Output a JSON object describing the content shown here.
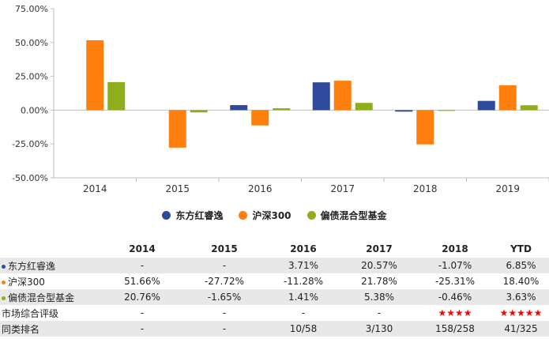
{
  "colors": {
    "series1": "#2f4a9a",
    "series2": "#ff7f0e",
    "series3": "#8fae1b",
    "rating": "#ff0000",
    "grid": "#d9d9d9",
    "row_shade": "#e8e8e8"
  },
  "chart_data": {
    "type": "bar",
    "categories": [
      "2014",
      "2015",
      "2016",
      "2017",
      "2018",
      "2019"
    ],
    "series": [
      {
        "name": "东方红睿逸",
        "values": [
          null,
          null,
          3.71,
          20.57,
          -1.07,
          6.85
        ]
      },
      {
        "name": "沪深300",
        "values": [
          51.66,
          -27.72,
          -11.28,
          21.78,
          -25.31,
          18.4
        ]
      },
      {
        "name": "偏债混合型基金",
        "values": [
          20.76,
          -1.65,
          1.41,
          5.38,
          -0.46,
          3.63
        ]
      }
    ],
    "ylim": [
      -50,
      75
    ],
    "yticks": [
      75,
      50,
      25,
      0,
      -25,
      -50
    ],
    "ytick_labels": [
      "75.00%",
      "50.00%",
      "25.00%",
      "0.00%",
      "-25.00%",
      "-50.00%"
    ],
    "legend_position": "bottom",
    "grid": false
  },
  "table": {
    "headers": [
      "",
      "2014",
      "2015",
      "2016",
      "2017",
      "2018",
      "YTD"
    ],
    "rows": [
      {
        "label": "东方红睿逸",
        "dot": "#2f4a9a",
        "cells": [
          "-",
          "-",
          "3.71%",
          "20.57%",
          "-1.07%",
          "6.85%"
        ]
      },
      {
        "label": "沪深300",
        "dot": "#ff7f0e",
        "cells": [
          "51.66%",
          "-27.72%",
          "-11.28%",
          "21.78%",
          "-25.31%",
          "18.40%"
        ]
      },
      {
        "label": "偏债混合型基金",
        "dot": "#8fae1b",
        "cells": [
          "20.76%",
          "-1.65%",
          "1.41%",
          "5.38%",
          "-0.46%",
          "3.63%"
        ]
      },
      {
        "label": "市场综合评级",
        "dot": null,
        "cells": [
          "-",
          "-",
          "-",
          "-",
          "★★★★",
          "★★★★★"
        ]
      },
      {
        "label": "同类排名",
        "dot": null,
        "cells": [
          "-",
          "-",
          "10/58",
          "3/130",
          "158/258",
          "41/325"
        ]
      }
    ]
  }
}
